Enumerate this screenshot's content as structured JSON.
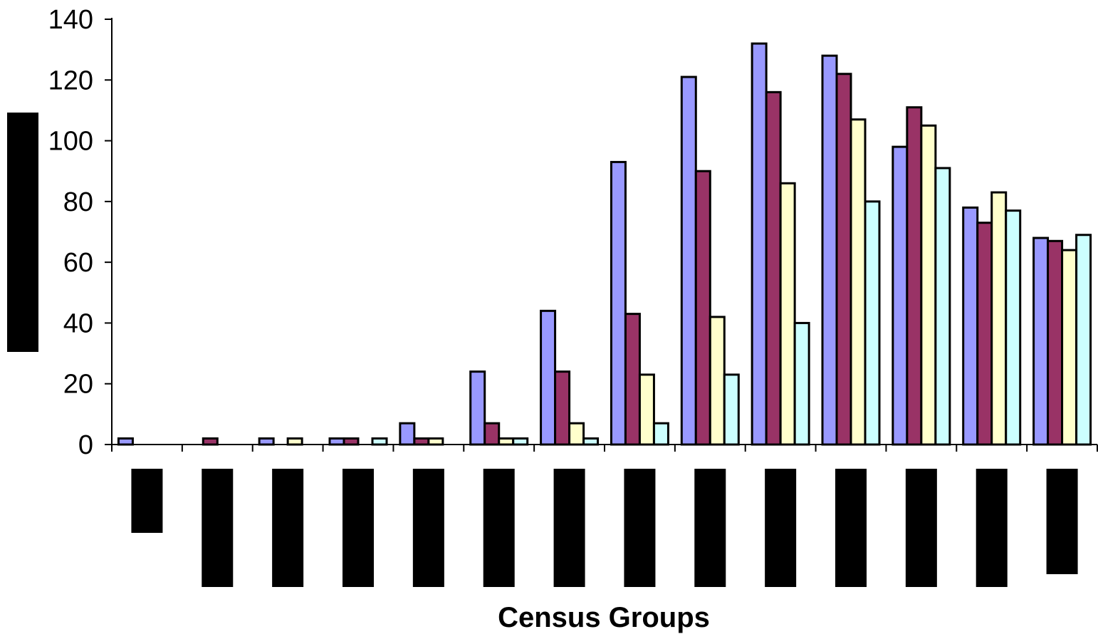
{
  "chart_data": {
    "type": "bar",
    "title": "",
    "xlabel": "Census Groups",
    "ylabel": "",
    "ylim": [
      0,
      140
    ],
    "yticks": [
      0,
      20,
      40,
      60,
      80,
      100,
      120,
      140
    ],
    "grid": false,
    "legend": "none",
    "categories": [
      "",
      "",
      "",
      "",
      "",
      "",
      "",
      "",
      "",
      "",
      "",
      "",
      "",
      ""
    ],
    "series": [
      {
        "color": "#9999ff",
        "values": [
          2,
          0,
          2,
          2,
          7,
          24,
          44,
          93,
          121,
          132,
          128,
          98,
          78,
          68
        ]
      },
      {
        "color": "#993366",
        "values": [
          0,
          2,
          0,
          2,
          2,
          7,
          24,
          43,
          90,
          116,
          122,
          111,
          73,
          67
        ]
      },
      {
        "color": "#ffffcc",
        "values": [
          0,
          0,
          2,
          0,
          2,
          2,
          7,
          23,
          42,
          86,
          107,
          105,
          83,
          64
        ]
      },
      {
        "color": "#ccffff",
        "values": [
          0,
          0,
          0,
          2,
          0,
          2,
          2,
          7,
          23,
          40,
          80,
          91,
          77,
          69
        ]
      }
    ]
  }
}
